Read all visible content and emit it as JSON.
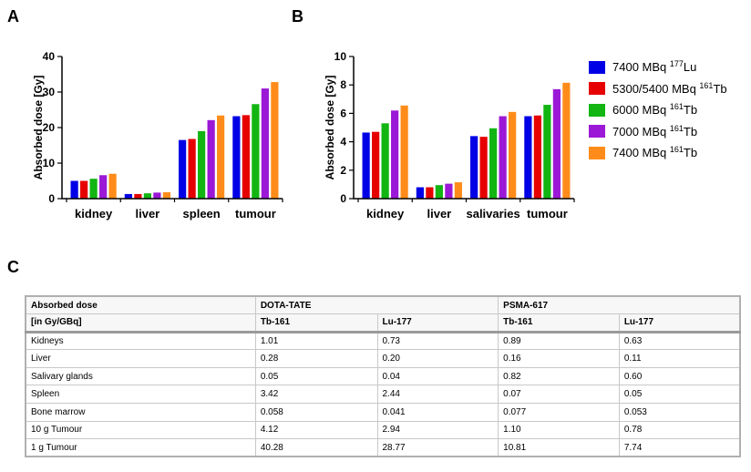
{
  "panels": {
    "a": "A",
    "b": "B",
    "c": "C"
  },
  "colors": [
    "#0000e6",
    "#e60000",
    "#12b512",
    "#9b18d6",
    "#ff8c1a"
  ],
  "legend": [
    {
      "pre": "7400 MBq ",
      "sup": "177",
      "post": "Lu"
    },
    {
      "pre": "5300/5400 MBq ",
      "sup": "161",
      "post": "Tb"
    },
    {
      "pre": "6000 MBq ",
      "sup": "161",
      "post": "Tb"
    },
    {
      "pre": "7000 MBq ",
      "sup": "161",
      "post": "Tb"
    },
    {
      "pre": "7400 MBq ",
      "sup": "161",
      "post": "Tb"
    }
  ],
  "chart_data": [
    {
      "type": "bar",
      "panel": "A",
      "ylabel": "Absorbed dose [Gy]",
      "ylim": [
        0,
        40
      ],
      "yticks": [
        0,
        10,
        20,
        30,
        40
      ],
      "categories": [
        "kidney",
        "liver",
        "spleen",
        "tumour"
      ],
      "series": [
        {
          "name": "7400 MBq 177Lu",
          "values": [
            5.0,
            1.3,
            16.5,
            23.2
          ]
        },
        {
          "name": "5300/5400 MBq 161Tb",
          "values": [
            5.0,
            1.3,
            16.8,
            23.5
          ]
        },
        {
          "name": "6000 MBq 161Tb",
          "values": [
            5.6,
            1.5,
            19.0,
            26.6
          ]
        },
        {
          "name": "7000 MBq 161Tb",
          "values": [
            6.6,
            1.7,
            22.1,
            31.0
          ]
        },
        {
          "name": "7400 MBq 161Tb",
          "values": [
            7.0,
            1.8,
            23.4,
            32.8
          ]
        }
      ]
    },
    {
      "type": "bar",
      "panel": "B",
      "ylabel": "Absorbed dose [Gy]",
      "ylim": [
        0,
        10
      ],
      "yticks": [
        0,
        2,
        4,
        6,
        8,
        10
      ],
      "categories": [
        "kidney",
        "liver",
        "salivaries",
        "tumour"
      ],
      "series": [
        {
          "name": "7400 MBq 177Lu",
          "values": [
            4.65,
            0.8,
            4.4,
            5.8
          ]
        },
        {
          "name": "5300/5400 MBq 161Tb",
          "values": [
            4.7,
            0.8,
            4.35,
            5.85
          ]
        },
        {
          "name": "6000 MBq 161Tb",
          "values": [
            5.3,
            0.95,
            4.95,
            6.6
          ]
        },
        {
          "name": "7000 MBq 161Tb",
          "values": [
            6.2,
            1.05,
            5.8,
            7.7
          ]
        },
        {
          "name": "7400 MBq 161Tb",
          "values": [
            6.55,
            1.15,
            6.1,
            8.15
          ]
        }
      ]
    },
    {
      "type": "table",
      "panel": "C",
      "header1": [
        "Absorbed dose",
        "DOTA-TATE",
        "",
        "PSMA-617",
        ""
      ],
      "header2": [
        "[in Gy/GBq]",
        "Tb-161",
        "Lu-177",
        "Tb-161",
        "Lu-177"
      ],
      "rows": [
        [
          "Kidneys",
          "1.01",
          "0.73",
          "0.89",
          "0.63"
        ],
        [
          "Liver",
          "0.28",
          "0.20",
          "0.16",
          "0.11"
        ],
        [
          "Salivary glands",
          "0.05",
          "0.04",
          "0.82",
          "0.60"
        ],
        [
          "Spleen",
          "3.42",
          "2.44",
          "0.07",
          "0.05"
        ],
        [
          "Bone marrow",
          "0.058",
          "0.041",
          "0.077",
          "0.053"
        ],
        [
          "10 g Tumour",
          "4.12",
          "2.94",
          "1.10",
          "0.78"
        ],
        [
          "1 g Tumour",
          "40.28",
          "28.77",
          "10.81",
          "7.74"
        ]
      ]
    }
  ]
}
